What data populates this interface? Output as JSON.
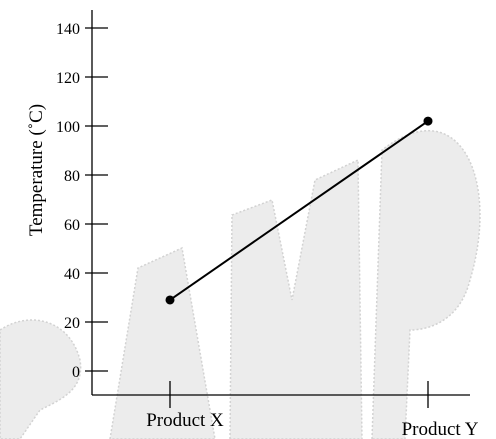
{
  "chart_data": {
    "type": "line",
    "categories": [
      "Product X",
      "Product Y"
    ],
    "series": [
      {
        "values": [
          29,
          102
        ]
      }
    ],
    "ylabel": "Temperature (˚C)",
    "xlabel": "",
    "ylim": [
      0,
      140
    ],
    "yticks": [
      0,
      20,
      40,
      60,
      80,
      100,
      120,
      140
    ],
    "grid": false,
    "watermark": "SAMPLE",
    "colors": {
      "line": "#000000",
      "marker": "#000000",
      "watermark": "#d8d8d8"
    }
  }
}
